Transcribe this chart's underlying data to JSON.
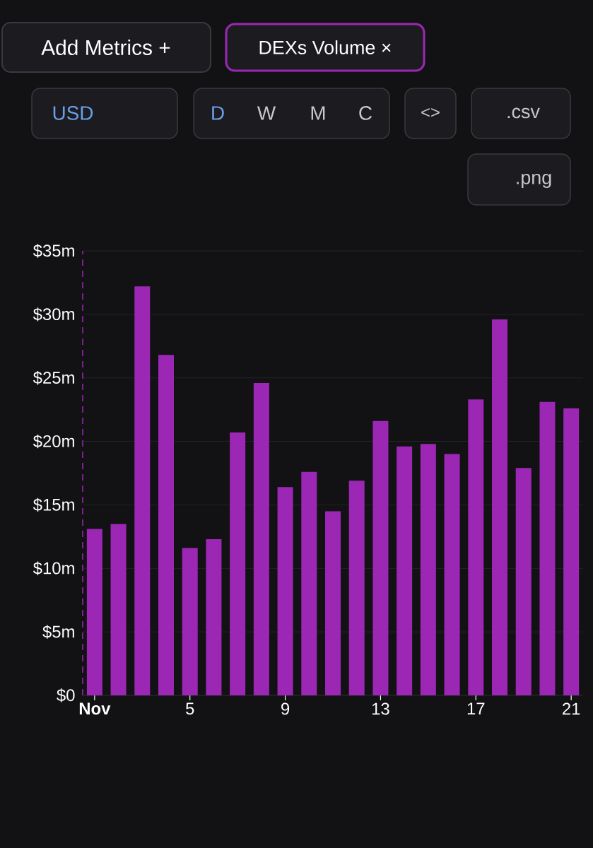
{
  "chart_data": {
    "type": "bar",
    "x": [
      1,
      2,
      3,
      4,
      5,
      6,
      7,
      8,
      9,
      10,
      11,
      12,
      13,
      14,
      15,
      16,
      17,
      18,
      19,
      20,
      21
    ],
    "values": [
      13.1,
      13.5,
      32.2,
      26.8,
      11.6,
      12.3,
      20.7,
      24.6,
      16.4,
      17.6,
      14.5,
      16.9,
      21.6,
      19.6,
      19.8,
      19.0,
      23.3,
      29.6,
      17.9,
      23.1,
      22.6
    ],
    "color": "#9c27b5",
    "xlim": [
      0.5,
      21.5
    ],
    "xticks": [
      {
        "value": 1,
        "label": "Nov"
      },
      5,
      9,
      13,
      17,
      21
    ],
    "ylim": [
      0,
      35
    ],
    "yticks": [
      {
        "value": 0,
        "label": "$0"
      },
      {
        "value": 5,
        "label": "$5m"
      },
      {
        "value": 10,
        "label": "$10m"
      },
      {
        "value": 15,
        "label": "$15m"
      },
      {
        "value": 20,
        "label": "$20m"
      },
      {
        "value": 25,
        "label": "$25m"
      },
      {
        "value": 30,
        "label": "$30m"
      },
      {
        "value": 35,
        "label": "$35m"
      }
    ],
    "grid": "y",
    "ref_lines": [
      {
        "axis": "x",
        "value": 0.5,
        "color": "#9c27b5",
        "line_style": "dashed"
      }
    ],
    "annotations": [
      "Add Metrics +",
      "DEXs Volume ×",
      "USD",
      "D",
      "W",
      "M",
      "C",
      "<>",
      ".csv",
      ".png"
    ]
  }
}
